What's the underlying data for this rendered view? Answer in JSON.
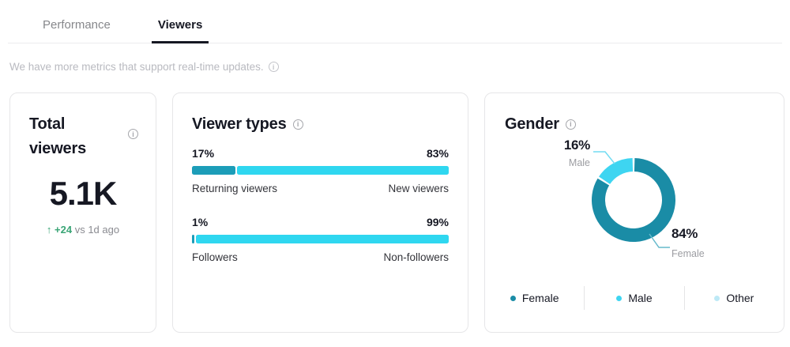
{
  "tabs": [
    {
      "label": "Performance",
      "active": false
    },
    {
      "label": "Viewers",
      "active": true
    }
  ],
  "subtitle": "We have more metrics that support real-time updates.",
  "colors": {
    "accent_dark": "#1C9DB8",
    "accent_cyan": "#2FD7F0",
    "positive": "#3AA576",
    "active_tab": "#161823"
  },
  "cards": {
    "total_viewers": {
      "title": "Total viewers",
      "value": "5.1K",
      "delta_arrow": "↑",
      "delta": "+24",
      "delta_compare": "vs 1d ago"
    },
    "viewer_types": {
      "title": "Viewer types",
      "bars": [
        {
          "left_pct": "17%",
          "right_pct": "83%",
          "left_value": 17,
          "right_value": 83,
          "left_label": "Returning viewers",
          "right_label": "New viewers"
        },
        {
          "left_pct": "1%",
          "right_pct": "99%",
          "left_value": 1,
          "right_value": 99,
          "left_label": "Followers",
          "right_label": "Non-followers"
        }
      ]
    },
    "gender": {
      "title": "Gender",
      "callouts": [
        {
          "pct": "16%",
          "label": "Male"
        },
        {
          "pct": "84%",
          "label": "Female"
        }
      ],
      "legend": [
        {
          "label": "Female",
          "color": "#1A8CA6"
        },
        {
          "label": "Male",
          "color": "#3ED5F1"
        },
        {
          "label": "Other",
          "color": "#BDE9F6"
        }
      ],
      "donut": {
        "gap_deg": 3,
        "segments": [
          {
            "name": "Female",
            "value": 84,
            "color": "#1A8CA6"
          },
          {
            "name": "Male",
            "value": 16,
            "color": "#3ED5F1"
          },
          {
            "name": "Other",
            "value": 0,
            "color": "#BDE9F6"
          }
        ]
      }
    }
  },
  "chart_data": [
    {
      "type": "bar",
      "title": "Viewer types",
      "unit": "%",
      "orientation": "horizontal-split",
      "bars": [
        {
          "categories": [
            "Returning viewers",
            "New viewers"
          ],
          "values": [
            17,
            83
          ]
        },
        {
          "categories": [
            "Followers",
            "Non-followers"
          ],
          "values": [
            1,
            99
          ]
        }
      ]
    },
    {
      "type": "pie",
      "title": "Gender",
      "donut": true,
      "labels": [
        "Female",
        "Male",
        "Other"
      ],
      "values": [
        84,
        16,
        0
      ],
      "unit": "%",
      "legend_position": "bottom"
    }
  ]
}
